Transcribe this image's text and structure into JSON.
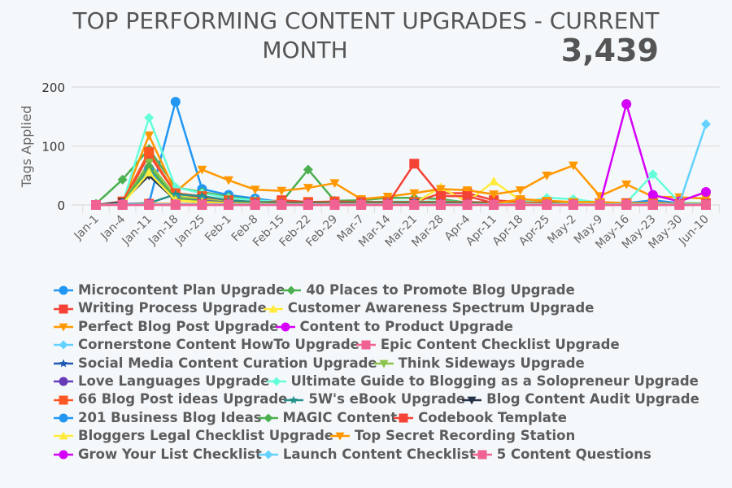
{
  "header": {
    "title_line1": "TOP PERFORMING CONTENT UPGRADES - CURRENT",
    "title_line2": "MONTH",
    "total": "3,439"
  },
  "chart_data": {
    "type": "line",
    "title": "TOP PERFORMING CONTENT UPGRADES - CURRENT MONTH",
    "xlabel": "",
    "ylabel": "Tags Applied",
    "ylim": [
      0,
      200
    ],
    "yticks": [
      0,
      100,
      200
    ],
    "grid": true,
    "legend_position": "bottom",
    "categories": [
      "Jan-1",
      "Jan-4",
      "Jan-11",
      "Jan-18",
      "Jan-25",
      "Feb-1",
      "Feb-8",
      "Feb-15",
      "Feb-22",
      "Feb-29",
      "Mar-7",
      "Mar-14",
      "Mar-21",
      "Mar-28",
      "Apr-4",
      "Apr-11",
      "Apr-18",
      "Apr-25",
      "May-2",
      "May-9",
      "May-16",
      "May-23",
      "May-30",
      "Jun-10"
    ],
    "series": [
      {
        "name": "Microcontent Plan Upgrade",
        "color": "#2196f3",
        "marker": "circle",
        "values": [
          0,
          2,
          3,
          175,
          27,
          17,
          11,
          5,
          3,
          3,
          4,
          4,
          5,
          6,
          4,
          3,
          3,
          3,
          2,
          2,
          3,
          8,
          3,
          3
        ]
      },
      {
        "name": "40 Places to Promote Blog Upgrade",
        "color": "#4caf50",
        "marker": "diamond",
        "values": [
          2,
          43,
          95,
          30,
          22,
          14,
          8,
          5,
          60,
          7,
          8,
          12,
          12,
          10,
          4,
          3,
          3,
          3,
          2,
          2,
          2,
          3,
          2,
          2
        ]
      },
      {
        "name": "Writing Process Upgrade",
        "color": "#f44336",
        "marker": "square",
        "values": [
          0,
          3,
          85,
          20,
          12,
          6,
          4,
          8,
          5,
          6,
          5,
          5,
          4,
          20,
          20,
          8,
          5,
          4,
          3,
          3,
          3,
          3,
          2,
          3
        ]
      },
      {
        "name": "Customer Awareness Spectrum Upgrade",
        "color": "#ffeb3b",
        "marker": "triangle-up",
        "values": [
          0,
          2,
          70,
          15,
          10,
          5,
          4,
          3,
          3,
          3,
          3,
          3,
          3,
          30,
          5,
          40,
          8,
          5,
          3,
          3,
          3,
          3,
          2,
          2
        ]
      },
      {
        "name": "Perfect Blog Post Upgrade",
        "color": "#ff9800",
        "marker": "triangle-down",
        "values": [
          0,
          5,
          118,
          22,
          60,
          42,
          26,
          24,
          29,
          37,
          10,
          14,
          20,
          27,
          25,
          18,
          25,
          50,
          67,
          15,
          35,
          14,
          13,
          11
        ]
      },
      {
        "name": "Content to Product Upgrade",
        "color": "#d500f9",
        "marker": "circle",
        "values": [
          0,
          1,
          2,
          1,
          1,
          1,
          1,
          1,
          1,
          1,
          1,
          1,
          1,
          1,
          1,
          1,
          1,
          1,
          1,
          1,
          171,
          17,
          6,
          22
        ]
      },
      {
        "name": "Cornerstone Content HowTo Upgrade",
        "color": "#64d2ff",
        "marker": "diamond",
        "values": [
          0,
          1,
          2,
          1,
          1,
          1,
          1,
          1,
          1,
          1,
          1,
          1,
          1,
          1,
          1,
          1,
          1,
          1,
          1,
          1,
          1,
          1,
          3,
          137
        ]
      },
      {
        "name": "Epic Content Checklist Upgrade",
        "color": "#f06292",
        "marker": "square",
        "values": [
          0,
          0,
          0,
          0,
          0,
          0,
          0,
          0,
          0,
          0,
          0,
          0,
          0,
          0,
          0,
          0,
          0,
          0,
          0,
          0,
          0,
          0,
          0,
          0
        ]
      },
      {
        "name": "Social Media Content Curation Upgrade",
        "color": "#1e5ab4",
        "marker": "star",
        "values": [
          0,
          3,
          62,
          12,
          8,
          4,
          3,
          3,
          3,
          3,
          3,
          3,
          3,
          3,
          3,
          3,
          3,
          3,
          3,
          2,
          2,
          2,
          2,
          2
        ]
      },
      {
        "name": "Think Sideways Upgrade",
        "color": "#8bc34a",
        "marker": "triangle-down",
        "values": [
          0,
          3,
          72,
          14,
          9,
          5,
          4,
          3,
          3,
          3,
          3,
          3,
          3,
          3,
          3,
          3,
          3,
          3,
          3,
          2,
          2,
          2,
          2,
          2
        ]
      },
      {
        "name": "Love Languages Upgrade",
        "color": "#673ab7",
        "marker": "circle",
        "values": [
          0,
          3,
          62,
          10,
          7,
          4,
          3,
          3,
          3,
          3,
          3,
          3,
          3,
          3,
          3,
          3,
          3,
          3,
          3,
          2,
          2,
          2,
          2,
          2
        ]
      },
      {
        "name": "Ultimate Guide to Blogging as a Solopreneur Upgrade",
        "color": "#64ffda",
        "marker": "diamond",
        "values": [
          0,
          2,
          148,
          30,
          20,
          12,
          8,
          5,
          4,
          4,
          5,
          6,
          6,
          6,
          5,
          4,
          4,
          12,
          10,
          4,
          4,
          52,
          4,
          3
        ]
      },
      {
        "name": "66 Blog Post ideas Upgrade",
        "color": "#ff5722",
        "marker": "square",
        "values": [
          0,
          6,
          90,
          20,
          15,
          8,
          5,
          5,
          5,
          5,
          5,
          5,
          5,
          5,
          5,
          4,
          4,
          4,
          3,
          3,
          3,
          3,
          2,
          2
        ]
      },
      {
        "name": "5W's eBook Upgrade",
        "color": "#26918b",
        "marker": "star",
        "values": [
          0,
          1,
          3,
          18,
          15,
          8,
          5,
          4,
          4,
          4,
          4,
          4,
          4,
          4,
          4,
          3,
          3,
          3,
          3,
          2,
          2,
          2,
          2,
          2
        ]
      },
      {
        "name": "Blog Content Audit Upgrade",
        "color": "#263248",
        "marker": "triangle-down",
        "values": [
          0,
          5,
          50,
          8,
          6,
          3,
          3,
          3,
          3,
          3,
          3,
          3,
          3,
          3,
          3,
          3,
          3,
          3,
          3,
          2,
          2,
          2,
          2,
          2
        ]
      },
      {
        "name": "201 Business Blog Ideas",
        "color": "#2196f3",
        "marker": "circle",
        "values": [
          0,
          2,
          60,
          10,
          6,
          3,
          3,
          2,
          2,
          2,
          2,
          2,
          2,
          2,
          2,
          2,
          2,
          2,
          2,
          2,
          2,
          2,
          2,
          2
        ]
      },
      {
        "name": "MAGIC Content",
        "color": "#4caf50",
        "marker": "diamond",
        "values": [
          0,
          2,
          65,
          10,
          6,
          3,
          3,
          2,
          2,
          2,
          2,
          2,
          2,
          2,
          2,
          2,
          2,
          2,
          2,
          2,
          2,
          2,
          2,
          2
        ]
      },
      {
        "name": "Codebook Template",
        "color": "#f44336",
        "marker": "square",
        "values": [
          0,
          1,
          2,
          2,
          2,
          2,
          2,
          2,
          2,
          2,
          2,
          2,
          70,
          15,
          15,
          3,
          3,
          2,
          2,
          2,
          2,
          2,
          2,
          2
        ]
      },
      {
        "name": "Bloggers Legal Checklist Upgrade",
        "color": "#ffeb3b",
        "marker": "triangle-up",
        "values": [
          0,
          2,
          55,
          8,
          5,
          3,
          2,
          2,
          2,
          2,
          2,
          2,
          2,
          2,
          2,
          2,
          2,
          2,
          2,
          2,
          2,
          2,
          2,
          2
        ]
      },
      {
        "name": "Top Secret Recording Station",
        "color": "#ff9800",
        "marker": "triangle-down",
        "values": [
          0,
          1,
          2,
          2,
          2,
          2,
          2,
          2,
          2,
          2,
          2,
          2,
          2,
          2,
          2,
          2,
          10,
          7,
          5,
          5,
          3,
          3,
          2,
          2
        ]
      },
      {
        "name": "Grow Your List Checklist",
        "color": "#d500f9",
        "marker": "circle",
        "values": [
          0,
          1,
          1,
          1,
          1,
          1,
          1,
          1,
          1,
          1,
          1,
          1,
          1,
          1,
          1,
          1,
          1,
          1,
          1,
          1,
          1,
          1,
          1,
          1
        ]
      },
      {
        "name": "Launch Content Checklist",
        "color": "#64d2ff",
        "marker": "diamond",
        "values": [
          0,
          1,
          1,
          1,
          1,
          1,
          1,
          1,
          1,
          1,
          1,
          1,
          1,
          1,
          1,
          1,
          1,
          1,
          1,
          1,
          1,
          1,
          1,
          1
        ]
      },
      {
        "name": "5 Content Questions",
        "color": "#f06292",
        "marker": "square",
        "values": [
          0,
          0,
          0,
          0,
          0,
          0,
          0,
          0,
          0,
          0,
          0,
          0,
          0,
          0,
          0,
          0,
          0,
          0,
          0,
          0,
          0,
          0,
          0,
          0
        ]
      }
    ]
  },
  "legend_rows": [
    [
      0,
      1
    ],
    [
      2,
      3
    ],
    [
      4,
      5
    ],
    [
      6,
      7
    ],
    [
      8,
      9
    ],
    [
      10,
      11
    ],
    [
      12,
      13,
      14
    ],
    [
      15,
      16,
      17
    ],
    [
      18,
      19
    ],
    [
      20,
      21,
      22
    ]
  ]
}
